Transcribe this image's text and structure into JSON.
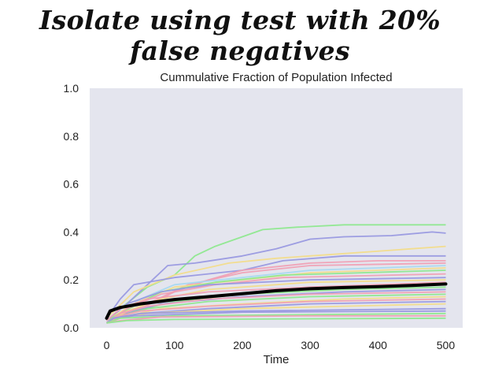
{
  "page": {
    "heading": "Isolate using test with 20% false negatives"
  },
  "chart_data": {
    "type": "line",
    "title": "Cummulative Fraction of Population Infected",
    "xlabel": "Time",
    "ylabel": "",
    "xlim": [
      -25,
      525
    ],
    "ylim": [
      0,
      1.0
    ],
    "x_ticks": [
      "0",
      "100",
      "200",
      "300",
      "400",
      "500"
    ],
    "y_ticks": [
      "0.0",
      "0.2",
      "0.4",
      "0.6",
      "0.8",
      "1.0"
    ],
    "background": "#e4e5ee",
    "grid": false,
    "mean_series": {
      "name": "mean",
      "color": "#000000",
      "points": [
        [
          0,
          0.04
        ],
        [
          5,
          0.07
        ],
        [
          20,
          0.085
        ],
        [
          50,
          0.1
        ],
        [
          100,
          0.118
        ],
        [
          150,
          0.13
        ],
        [
          200,
          0.142
        ],
        [
          250,
          0.155
        ],
        [
          300,
          0.163
        ],
        [
          350,
          0.168
        ],
        [
          400,
          0.172
        ],
        [
          450,
          0.177
        ],
        [
          500,
          0.183
        ]
      ]
    },
    "series": [
      {
        "name": "run-1",
        "color": "#8ee88e",
        "points": [
          [
            0,
            0.03
          ],
          [
            20,
            0.08
          ],
          [
            60,
            0.17
          ],
          [
            100,
            0.22
          ],
          [
            130,
            0.3
          ],
          [
            160,
            0.34
          ],
          [
            190,
            0.37
          ],
          [
            230,
            0.41
          ],
          [
            280,
            0.42
          ],
          [
            350,
            0.43
          ],
          [
            500,
            0.43
          ]
        ]
      },
      {
        "name": "run-2",
        "color": "#9999e0",
        "points": [
          [
            0,
            0.03
          ],
          [
            30,
            0.1
          ],
          [
            60,
            0.18
          ],
          [
            90,
            0.26
          ],
          [
            130,
            0.27
          ],
          [
            200,
            0.3
          ],
          [
            250,
            0.33
          ],
          [
            300,
            0.37
          ],
          [
            350,
            0.38
          ],
          [
            420,
            0.385
          ],
          [
            480,
            0.4
          ],
          [
            500,
            0.395
          ]
        ]
      },
      {
        "name": "run-3",
        "color": "#f2dc8a",
        "points": [
          [
            0,
            0.04
          ],
          [
            40,
            0.15
          ],
          [
            100,
            0.22
          ],
          [
            180,
            0.27
          ],
          [
            250,
            0.29
          ],
          [
            350,
            0.31
          ],
          [
            450,
            0.33
          ],
          [
            500,
            0.34
          ]
        ]
      },
      {
        "name": "run-4",
        "color": "#9999e0",
        "points": [
          [
            0,
            0.04
          ],
          [
            20,
            0.12
          ],
          [
            40,
            0.18
          ],
          [
            100,
            0.21
          ],
          [
            200,
            0.24
          ],
          [
            260,
            0.28
          ],
          [
            350,
            0.3
          ],
          [
            500,
            0.3
          ]
        ]
      },
      {
        "name": "run-5",
        "color": "#f0a0b4",
        "points": [
          [
            0,
            0.02
          ],
          [
            50,
            0.08
          ],
          [
            100,
            0.15
          ],
          [
            150,
            0.2
          ],
          [
            200,
            0.24
          ],
          [
            300,
            0.27
          ],
          [
            400,
            0.28
          ],
          [
            500,
            0.28
          ]
        ]
      },
      {
        "name": "run-6",
        "color": "#f0a0b4",
        "points": [
          [
            0,
            0.03
          ],
          [
            60,
            0.1
          ],
          [
            120,
            0.18
          ],
          [
            200,
            0.23
          ],
          [
            300,
            0.26
          ],
          [
            500,
            0.27
          ]
        ]
      },
      {
        "name": "run-7",
        "color": "#a8d8f0",
        "points": [
          [
            0,
            0.02
          ],
          [
            50,
            0.12
          ],
          [
            100,
            0.18
          ],
          [
            200,
            0.21
          ],
          [
            300,
            0.24
          ],
          [
            500,
            0.26
          ]
        ]
      },
      {
        "name": "run-8",
        "color": "#f2dc8a",
        "points": [
          [
            0,
            0.03
          ],
          [
            40,
            0.1
          ],
          [
            100,
            0.17
          ],
          [
            200,
            0.2
          ],
          [
            300,
            0.23
          ],
          [
            500,
            0.25
          ]
        ]
      },
      {
        "name": "run-9",
        "color": "#8ee88e",
        "points": [
          [
            0,
            0.03
          ],
          [
            40,
            0.09
          ],
          [
            80,
            0.15
          ],
          [
            160,
            0.19
          ],
          [
            260,
            0.22
          ],
          [
            500,
            0.24
          ]
        ]
      },
      {
        "name": "run-10",
        "color": "#f0a0b4",
        "points": [
          [
            0,
            0.02
          ],
          [
            30,
            0.08
          ],
          [
            80,
            0.14
          ],
          [
            160,
            0.18
          ],
          [
            260,
            0.21
          ],
          [
            500,
            0.225
          ]
        ]
      },
      {
        "name": "run-11",
        "color": "#9999e0",
        "points": [
          [
            0,
            0.03
          ],
          [
            30,
            0.1
          ],
          [
            80,
            0.15
          ],
          [
            150,
            0.18
          ],
          [
            300,
            0.2
          ],
          [
            500,
            0.21
          ]
        ]
      },
      {
        "name": "run-12",
        "color": "#f2dc8a",
        "points": [
          [
            0,
            0.02
          ],
          [
            30,
            0.07
          ],
          [
            80,
            0.12
          ],
          [
            150,
            0.16
          ],
          [
            300,
            0.19
          ],
          [
            500,
            0.2
          ]
        ]
      },
      {
        "name": "run-13",
        "color": "#f0a0b4",
        "points": [
          [
            0,
            0.03
          ],
          [
            20,
            0.08
          ],
          [
            60,
            0.12
          ],
          [
            150,
            0.15
          ],
          [
            300,
            0.17
          ],
          [
            500,
            0.19
          ]
        ]
      },
      {
        "name": "run-14",
        "color": "#8ee88e",
        "points": [
          [
            0,
            0.02
          ],
          [
            40,
            0.07
          ],
          [
            100,
            0.11
          ],
          [
            200,
            0.14
          ],
          [
            350,
            0.16
          ],
          [
            500,
            0.17
          ]
        ]
      },
      {
        "name": "run-15",
        "color": "#9999e0",
        "points": [
          [
            0,
            0.02
          ],
          [
            30,
            0.06
          ],
          [
            80,
            0.1
          ],
          [
            200,
            0.13
          ],
          [
            350,
            0.15
          ],
          [
            500,
            0.16
          ]
        ]
      },
      {
        "name": "run-16",
        "color": "#f0a0b4",
        "points": [
          [
            0,
            0.02
          ],
          [
            20,
            0.06
          ],
          [
            60,
            0.09
          ],
          [
            150,
            0.12
          ],
          [
            300,
            0.14
          ],
          [
            500,
            0.15
          ]
        ]
      },
      {
        "name": "run-17",
        "color": "#8ee88e",
        "points": [
          [
            0,
            0.02
          ],
          [
            20,
            0.05
          ],
          [
            60,
            0.08
          ],
          [
            150,
            0.11
          ],
          [
            300,
            0.13
          ],
          [
            500,
            0.14
          ]
        ]
      },
      {
        "name": "run-18",
        "color": "#f2dc8a",
        "points": [
          [
            0,
            0.02
          ],
          [
            30,
            0.05
          ],
          [
            80,
            0.08
          ],
          [
            200,
            0.1
          ],
          [
            350,
            0.12
          ],
          [
            500,
            0.13
          ]
        ]
      },
      {
        "name": "run-19",
        "color": "#f0a0b4",
        "points": [
          [
            0,
            0.02
          ],
          [
            20,
            0.05
          ],
          [
            50,
            0.07
          ],
          [
            150,
            0.09
          ],
          [
            300,
            0.11
          ],
          [
            500,
            0.12
          ]
        ]
      },
      {
        "name": "run-20",
        "color": "#9999e0",
        "points": [
          [
            0,
            0.02
          ],
          [
            20,
            0.04
          ],
          [
            50,
            0.06
          ],
          [
            150,
            0.08
          ],
          [
            300,
            0.1
          ],
          [
            500,
            0.11
          ]
        ]
      },
      {
        "name": "run-21",
        "color": "#f2dc8a",
        "points": [
          [
            0,
            0.02
          ],
          [
            20,
            0.04
          ],
          [
            60,
            0.06
          ],
          [
            200,
            0.08
          ],
          [
            350,
            0.09
          ],
          [
            500,
            0.1
          ]
        ]
      },
      {
        "name": "run-22",
        "color": "#9999e0",
        "points": [
          [
            0,
            0.02
          ],
          [
            10,
            0.04
          ],
          [
            50,
            0.06
          ],
          [
            200,
            0.07
          ],
          [
            500,
            0.08
          ]
        ]
      },
      {
        "name": "run-23",
        "color": "#9999e0",
        "points": [
          [
            0,
            0.02
          ],
          [
            10,
            0.04
          ],
          [
            40,
            0.05
          ],
          [
            200,
            0.065
          ],
          [
            500,
            0.07
          ]
        ]
      },
      {
        "name": "run-24",
        "color": "#8ee88e",
        "points": [
          [
            0,
            0.02
          ],
          [
            20,
            0.04
          ],
          [
            100,
            0.05
          ],
          [
            300,
            0.055
          ],
          [
            500,
            0.06
          ]
        ]
      },
      {
        "name": "run-25",
        "color": "#f0a0b4",
        "points": [
          [
            0,
            0.02
          ],
          [
            20,
            0.03
          ],
          [
            80,
            0.045
          ],
          [
            300,
            0.05
          ],
          [
            500,
            0.05
          ]
        ]
      },
      {
        "name": "run-26",
        "color": "#8ee88e",
        "points": [
          [
            0,
            0.02
          ],
          [
            30,
            0.03
          ],
          [
            100,
            0.035
          ],
          [
            500,
            0.04
          ]
        ]
      }
    ]
  }
}
